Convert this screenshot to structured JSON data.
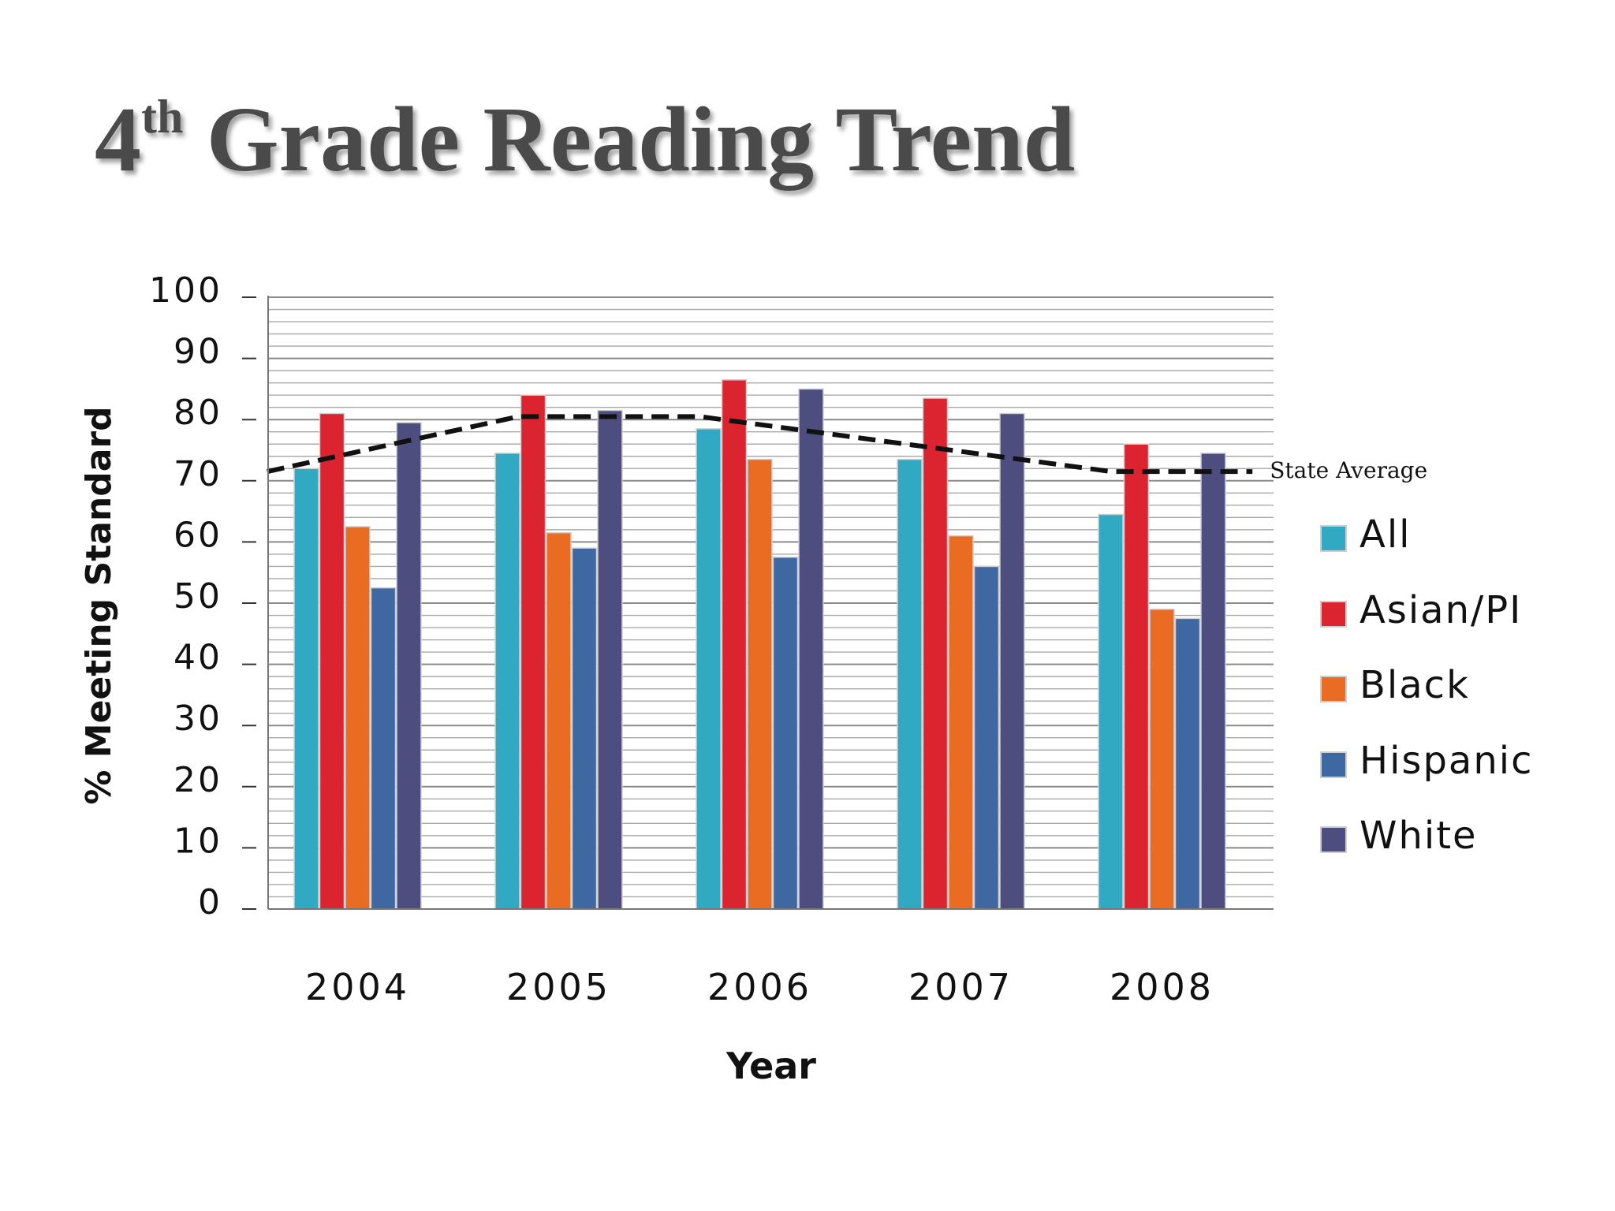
{
  "slide": {
    "title_main": "4",
    "title_sup": "th",
    "title_rest": " Grade Reading Trend"
  },
  "chart_data": {
    "type": "bar",
    "title": "4th Grade Reading Trend",
    "xlabel": "Year",
    "ylabel": "% Meeting Standard",
    "ylim": [
      0,
      100
    ],
    "yticks": [
      0,
      10,
      20,
      30,
      40,
      50,
      60,
      70,
      80,
      90,
      100
    ],
    "categories": [
      "2004",
      "2005",
      "2006",
      "2007",
      "2008"
    ],
    "series": [
      {
        "name": "All",
        "color": "#32a9c3",
        "values": [
          72,
          74.5,
          78.5,
          73.5,
          64.5
        ]
      },
      {
        "name": "Asian/PI",
        "color": "#dc2430",
        "values": [
          81,
          84,
          86.5,
          83.5,
          76
        ]
      },
      {
        "name": "Black",
        "color": "#ea6b22",
        "values": [
          62.5,
          61.5,
          73.5,
          61,
          49
        ]
      },
      {
        "name": "Hispanic",
        "color": "#3f68a2",
        "values": [
          52.5,
          59,
          57.5,
          56,
          47.5
        ]
      },
      {
        "name": "White",
        "color": "#4d4e7f",
        "values": [
          79.5,
          81.5,
          85,
          81,
          74.5
        ]
      }
    ],
    "line": {
      "name": "State Average",
      "label": "State Average",
      "style": "dashed",
      "color": "#111111",
      "values": [
        71.5,
        80.5,
        80.5,
        71.5,
        71.5
      ],
      "points": [
        {
          "x": 2003.55,
          "y": 71.5
        },
        {
          "x": 2004.8,
          "y": 80.5
        },
        {
          "x": 2005.7,
          "y": 80.5
        },
        {
          "x": 2007.75,
          "y": 71.5
        },
        {
          "x": 2008.45,
          "y": 71.5
        }
      ]
    },
    "grid": true,
    "legend_position": "right"
  }
}
